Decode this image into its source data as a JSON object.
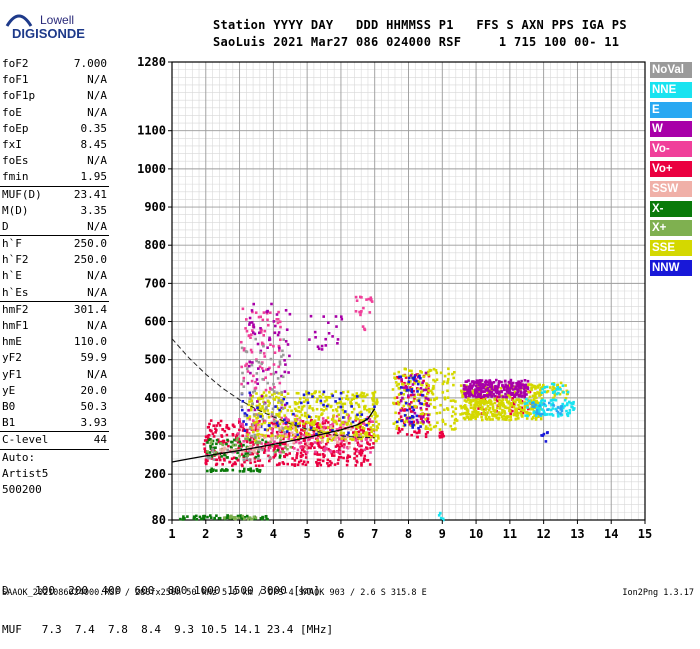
{
  "logo": {
    "line1": "Lowell",
    "line2": "DIGISONDE"
  },
  "header": {
    "line1": "Station YYYY DAY   DDD HHMMSS P1   FFS S AXN PPS IGA PS",
    "line2": "SaoLuis 2021 Mar27 086 024000 RSF     1 715 100 00- 11"
  },
  "params": [
    {
      "name": "foF2",
      "value": "7.000"
    },
    {
      "name": "foF1",
      "value": "N/A"
    },
    {
      "name": "foF1p",
      "value": "N/A"
    },
    {
      "name": "foE",
      "value": "N/A"
    },
    {
      "name": "foEp",
      "value": "0.35"
    },
    {
      "name": "fxI",
      "value": "8.45"
    },
    {
      "name": "foEs",
      "value": "N/A"
    },
    {
      "name": "fmin",
      "value": "1.95"
    },
    {
      "sep": true
    },
    {
      "name": "MUF(D)",
      "value": "23.41"
    },
    {
      "name": "M(D)",
      "value": "3.35"
    },
    {
      "name": "D",
      "value": "N/A"
    },
    {
      "sep": true
    },
    {
      "name": "h`F",
      "value": "250.0"
    },
    {
      "name": "h`F2",
      "value": "250.0"
    },
    {
      "name": "h`E",
      "value": "N/A"
    },
    {
      "name": "h`Es",
      "value": "N/A"
    },
    {
      "sep": true
    },
    {
      "name": "hmF2",
      "value": "301.4"
    },
    {
      "name": "hmF1",
      "value": "N/A"
    },
    {
      "name": "hmE",
      "value": "110.0"
    },
    {
      "name": "yF2",
      "value": "59.9"
    },
    {
      "name": "yF1",
      "value": "N/A"
    },
    {
      "name": "yE",
      "value": "20.0"
    },
    {
      "name": "B0",
      "value": "50.3"
    },
    {
      "name": "B1",
      "value": "3.93"
    },
    {
      "sep": true
    },
    {
      "name": "C-level",
      "value": "44"
    },
    {
      "sep": true
    },
    {
      "name": "Auto:",
      "value": ""
    },
    {
      "name": "Artist5",
      "value": ""
    },
    {
      "name": "500200",
      "value": ""
    }
  ],
  "legend": [
    {
      "label": "NoVal",
      "color": "#9a9a9a"
    },
    {
      "label": "NNE",
      "color": "#19e3f0"
    },
    {
      "label": "E",
      "color": "#28a8f2"
    },
    {
      "label": "W",
      "color": "#a800a8"
    },
    {
      "label": "Vo-",
      "color": "#f0409a"
    },
    {
      "label": "Vo+",
      "color": "#ea0040"
    },
    {
      "label": "SSW",
      "color": "#f0b0a8"
    },
    {
      "label": "X-",
      "color": "#0a7a0a"
    },
    {
      "label": "X+",
      "color": "#7fb050"
    },
    {
      "label": "SSE",
      "color": "#d4d800"
    },
    {
      "label": "NNW",
      "color": "#1818d8"
    }
  ],
  "chart_data": {
    "type": "scatter",
    "title": "",
    "xlabel": "",
    "ylabel": "",
    "xlim": [
      1,
      15
    ],
    "ylim": [
      80,
      1280
    ],
    "x_ticks": [
      "1",
      "2",
      "3",
      "4",
      "5",
      "6",
      "7",
      "8",
      "9",
      "10",
      "11",
      "12",
      "13",
      "14",
      "15"
    ],
    "y_ticks": [
      "80",
      "200",
      "300",
      "400",
      "500",
      "600",
      "700",
      "800",
      "900",
      "1000",
      "1100",
      "1280"
    ],
    "grid": true,
    "trace": {
      "name": "profile",
      "points": [
        [
          1.0,
          232
        ],
        [
          1.5,
          240
        ],
        [
          2.0,
          248
        ],
        [
          2.5,
          255
        ],
        [
          3.0,
          262
        ],
        [
          3.5,
          270
        ],
        [
          4.0,
          278
        ],
        [
          4.5,
          287
        ],
        [
          5.0,
          296
        ],
        [
          5.5,
          306
        ],
        [
          6.0,
          316
        ],
        [
          6.5,
          330
        ],
        [
          6.8,
          345
        ],
        [
          7.0,
          372
        ]
      ]
    },
    "profile_dashed": {
      "points": [
        [
          1.0,
          555
        ],
        [
          1.5,
          505
        ],
        [
          2.0,
          462
        ],
        [
          2.5,
          425
        ],
        [
          3.0,
          395
        ],
        [
          3.5,
          370
        ],
        [
          4.0,
          350
        ],
        [
          4.5,
          332
        ],
        [
          5.0,
          318
        ],
        [
          5.5,
          308
        ],
        [
          6.0,
          300
        ],
        [
          6.5,
          297
        ],
        [
          7.0,
          296
        ]
      ]
    },
    "series": [
      {
        "name": "Vo+",
        "color": "#ea0040",
        "clusters": [
          {
            "x": [
              1.9,
              6.95
            ],
            "y": [
              225,
              345
            ],
            "n": 520
          },
          {
            "x": [
              7.6,
              8.6
            ],
            "y": [
              300,
              470
            ],
            "n": 90
          },
          {
            "x": [
              9.9,
              11.6
            ],
            "y": [
              360,
              440
            ],
            "n": 70
          },
          {
            "x": [
              8.8,
              9.0
            ],
            "y": [
              300,
              320
            ],
            "n": 10
          }
        ]
      },
      {
        "name": "Vo-",
        "color": "#f0409a",
        "clusters": [
          {
            "x": [
              2.8,
              6.9
            ],
            "y": [
              260,
              360
            ],
            "n": 150
          },
          {
            "x": [
              3.0,
              4.2
            ],
            "y": [
              420,
              640
            ],
            "n": 80
          },
          {
            "x": [
              6.4,
              6.9
            ],
            "y": [
              580,
              680
            ],
            "n": 20
          }
        ]
      },
      {
        "name": "SSE",
        "color": "#d4d800",
        "clusters": [
          {
            "x": [
              3.2,
              7.1
            ],
            "y": [
              290,
              420
            ],
            "n": 420
          },
          {
            "x": [
              7.5,
              9.4
            ],
            "y": [
              320,
              480
            ],
            "n": 180
          },
          {
            "x": [
              9.5,
              11.9
            ],
            "y": [
              345,
              400
            ],
            "n": 320
          },
          {
            "x": [
              9.5,
              11.9
            ],
            "y": [
              405,
              440
            ],
            "n": 120
          },
          {
            "x": [
              11.6,
              12.7
            ],
            "y": [
              400,
              445
            ],
            "n": 40
          }
        ]
      },
      {
        "name": "W",
        "color": "#a800a8",
        "clusters": [
          {
            "x": [
              9.6,
              11.5
            ],
            "y": [
              405,
              450
            ],
            "n": 260
          },
          {
            "x": [
              7.7,
              8.6
            ],
            "y": [
              330,
              470
            ],
            "n": 40
          },
          {
            "x": [
              3.2,
              4.5
            ],
            "y": [
              370,
              650
            ],
            "n": 60
          },
          {
            "x": [
              5.0,
              6.0
            ],
            "y": [
              530,
              620
            ],
            "n": 20
          }
        ]
      },
      {
        "name": "NNE",
        "color": "#19e3f0",
        "clusters": [
          {
            "x": [
              11.4,
              12.9
            ],
            "y": [
              355,
              400
            ],
            "n": 80
          },
          {
            "x": [
              11.9,
              12.7
            ],
            "y": [
              410,
              440
            ],
            "n": 20
          },
          {
            "x": [
              8.8,
              9.0
            ],
            "y": [
              80,
              110
            ],
            "n": 6
          }
        ]
      },
      {
        "name": "E",
        "color": "#28a8f2",
        "clusters": [
          {
            "x": [
              11.6,
              12.6
            ],
            "y": [
              360,
              390
            ],
            "n": 25
          }
        ]
      },
      {
        "name": "NNW",
        "color": "#1818d8",
        "clusters": [
          {
            "x": [
              3.0,
              7.0
            ],
            "y": [
              300,
              420
            ],
            "n": 60
          },
          {
            "x": [
              7.6,
              8.4
            ],
            "y": [
              320,
              470
            ],
            "n": 40
          },
          {
            "x": [
              11.9,
              12.1
            ],
            "y": [
              280,
              320
            ],
            "n": 6
          }
        ]
      },
      {
        "name": "X-",
        "color": "#0a7a0a",
        "clusters": [
          {
            "x": [
              1.2,
              3.8
            ],
            "y": [
              85,
              95
            ],
            "n": 60
          },
          {
            "x": [
              2.0,
              3.6
            ],
            "y": [
              210,
              218
            ],
            "n": 30
          },
          {
            "x": [
              2.0,
              4.2
            ],
            "y": [
              245,
              295
            ],
            "n": 60
          }
        ]
      },
      {
        "name": "X+",
        "color": "#7fb050",
        "clusters": [
          {
            "x": [
              2.0,
              4.5
            ],
            "y": [
              250,
              300
            ],
            "n": 40
          },
          {
            "x": [
              2.5,
              3.5
            ],
            "y": [
              85,
              95
            ],
            "n": 20
          }
        ]
      },
      {
        "name": "SSW",
        "color": "#f0b0a8",
        "clusters": [
          {
            "x": [
              3.0,
              6.5
            ],
            "y": [
              270,
              330
            ],
            "n": 40
          },
          {
            "x": [
              2.2,
              3.5
            ],
            "y": [
              255,
              275
            ],
            "n": 20
          }
        ]
      },
      {
        "name": "NoVal",
        "color": "#9a9a9a",
        "clusters": [
          {
            "x": [
              3.0,
              4.3
            ],
            "y": [
              300,
              560
            ],
            "n": 60
          },
          {
            "x": [
              2.0,
              4.0
            ],
            "y": [
              240,
              270
            ],
            "n": 20
          }
        ]
      }
    ]
  },
  "bottom": {
    "d_line": "D    100  200  400  600  800 1000 1500 3000 [km]",
    "muf_line": "MUF   7.3  7.4  7.8  8.4  9.3 10.5 14.1 23.4 [MHz]"
  },
  "footer": {
    "text": "SAAOK_2021086024000.RSF / 280fx256h 50 kHz 5.0 km / DPS-4 SAAOK 903 / 2.6 S 315.8 E",
    "version": "Ion2Png 1.3.17"
  }
}
